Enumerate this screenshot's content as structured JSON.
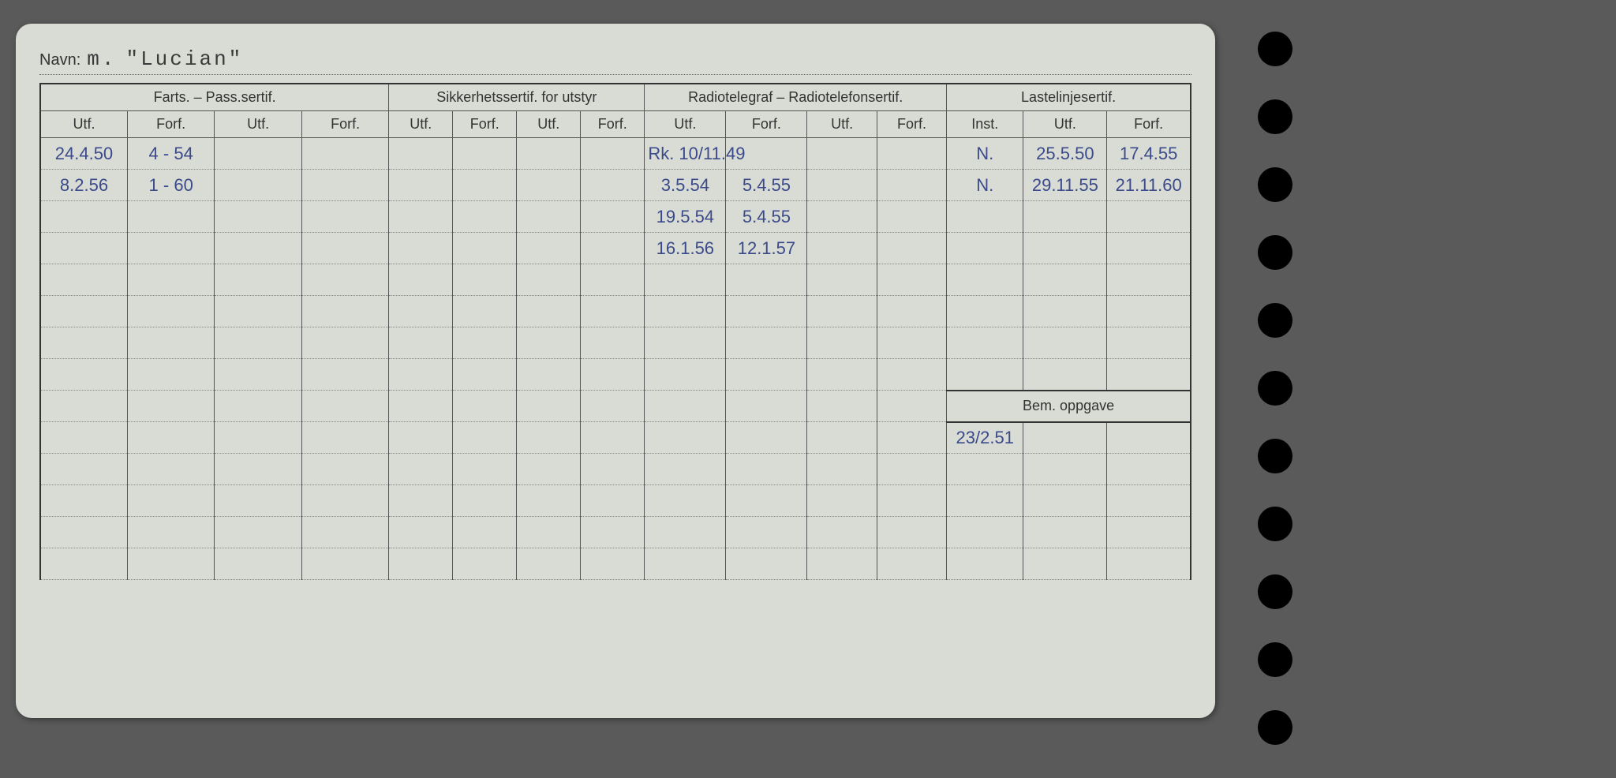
{
  "name_label": "Navn:",
  "name_prefix": "m.",
  "name_value": "\"Lucian\"",
  "groups": {
    "farts": "Farts. – Pass.sertif.",
    "sikker": "Sikkerhetssertif. for utstyr",
    "radio": "Radiotelegraf – Radiotelefonsertif.",
    "laste": "Lastelinjesertif."
  },
  "subheads": {
    "utf": "Utf.",
    "forf": "Forf.",
    "inst": "Inst."
  },
  "rows": [
    {
      "f_utf": "24.4.50",
      "f_forf": "4 - 54",
      "r_utf": "Rk. 10/11.49",
      "r_forf": "",
      "l_inst": "N.",
      "l_utf": "25.5.50",
      "l_forf": "17.4.55"
    },
    {
      "f_utf": "8.2.56",
      "f_forf": "1 - 60",
      "r_utf": "3.5.54",
      "r_forf": "5.4.55",
      "l_inst": "N.",
      "l_utf": "29.11.55",
      "l_forf": "21.11.60"
    },
    {
      "f_utf": "",
      "f_forf": "",
      "r_utf": "19.5.54",
      "r_forf": "5.4.55",
      "l_inst": "",
      "l_utf": "",
      "l_forf": ""
    },
    {
      "f_utf": "",
      "f_forf": "",
      "r_utf": "16.1.56",
      "r_forf": "12.1.57",
      "l_inst": "",
      "l_utf": "",
      "l_forf": ""
    },
    {
      "f_utf": "",
      "f_forf": "",
      "r_utf": "",
      "r_forf": "",
      "l_inst": "",
      "l_utf": "",
      "l_forf": ""
    },
    {
      "f_utf": "",
      "f_forf": "",
      "r_utf": "",
      "r_forf": "",
      "l_inst": "",
      "l_utf": "",
      "l_forf": ""
    },
    {
      "f_utf": "",
      "f_forf": "",
      "r_utf": "",
      "r_forf": "",
      "l_inst": "",
      "l_utf": "",
      "l_forf": ""
    },
    {
      "f_utf": "",
      "f_forf": "",
      "r_utf": "",
      "r_forf": "",
      "l_inst": "",
      "l_utf": "",
      "l_forf": ""
    }
  ],
  "bem_label": "Bem. oppgave",
  "bem_rows": [
    {
      "c1": "23/2.51",
      "c2": "",
      "c3": ""
    },
    {
      "c1": "",
      "c2": "",
      "c3": ""
    },
    {
      "c1": "",
      "c2": "",
      "c3": ""
    },
    {
      "c1": "",
      "c2": "",
      "c3": ""
    },
    {
      "c1": "",
      "c2": "",
      "c3": ""
    }
  ],
  "extra_body_rows": 5,
  "colors": {
    "card_bg": "#d8dcd4",
    "page_bg": "#5a5a5a",
    "ink": "#3b4a8a",
    "print": "#333"
  }
}
